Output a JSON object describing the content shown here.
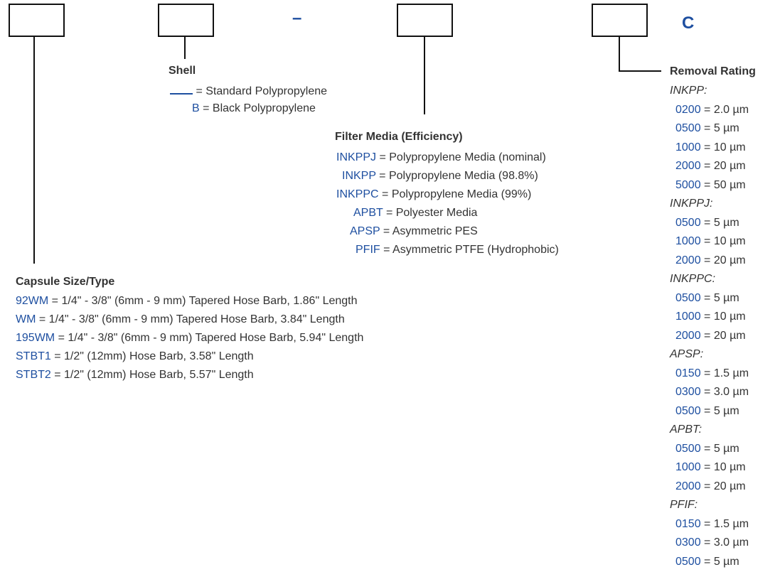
{
  "header": {
    "dash": "–",
    "suffix": "C"
  },
  "shell": {
    "title": "Shell",
    "items": [
      {
        "code": "",
        "text": "= Standard Polypropylene"
      },
      {
        "code": "B",
        "text": "= Black Polypropylene"
      }
    ]
  },
  "media": {
    "title": "Filter Media (Efficiency)",
    "items": [
      {
        "code": "INKPPJ",
        "text": "= Polypropylene Media (nominal)"
      },
      {
        "code": "INKPP",
        "text": "= Polypropylene Media (98.8%)"
      },
      {
        "code": "INKPPC",
        "text": "= Polypropylene Media (99%)"
      },
      {
        "code": "APBT",
        "text": "= Polyester Media"
      },
      {
        "code": "APSP",
        "text": "= Asymmetric PES"
      },
      {
        "code": "PFIF",
        "text": "= Asymmetric PTFE  (Hydrophobic)"
      }
    ]
  },
  "capsule": {
    "title": "Capsule Size/Type",
    "items": [
      {
        "code": "92WM",
        "text": "= 1/4\" - 3/8\" (6mm - 9 mm) Tapered Hose Barb, 1.86\" Length"
      },
      {
        "code": "WM",
        "text": "= 1/4\" - 3/8\" (6mm - 9 mm) Tapered Hose Barb, 3.84\" Length"
      },
      {
        "code": "195WM",
        "text": "= 1/4\" - 3/8\" (6mm - 9 mm) Tapered Hose Barb, 5.94\" Length"
      },
      {
        "code": "STBT1",
        "text": "= 1/2\" (12mm) Hose Barb, 3.58\" Length"
      },
      {
        "code": "STBT2",
        "text": " = 1/2\" (12mm) Hose Barb, 5.57\" Length"
      }
    ]
  },
  "removal": {
    "title": "Removal Rating",
    "groups": [
      {
        "name": "INKPP:",
        "items": [
          {
            "code": "0200",
            "text": "= 2.0 µm"
          },
          {
            "code": "0500",
            "text": "= 5 µm"
          },
          {
            "code": "1000",
            "text": "= 10 µm"
          },
          {
            "code": "2000",
            "text": "= 20 µm"
          },
          {
            "code": "5000",
            "text": "= 50 µm"
          }
        ]
      },
      {
        "name": "INKPPJ:",
        "items": [
          {
            "code": "0500",
            "text": "= 5 µm"
          },
          {
            "code": "1000",
            "text": "= 10 µm"
          },
          {
            "code": "2000",
            "text": "= 20 µm"
          }
        ]
      },
      {
        "name": "INKPPC:",
        "items": [
          {
            "code": "0500",
            "text": "= 5 µm"
          },
          {
            "code": "1000",
            "text": "= 10 µm"
          },
          {
            "code": "2000",
            "text": "= 20 µm"
          }
        ]
      },
      {
        "name": "APSP:",
        "items": [
          {
            "code": "0150",
            "text": "= 1.5 µm"
          },
          {
            "code": "0300",
            "text": "= 3.0 µm"
          },
          {
            "code": "0500",
            "text": "= 5 µm"
          }
        ]
      },
      {
        "name": "APBT:",
        "items": [
          {
            "code": "0500",
            "text": "= 5 µm"
          },
          {
            "code": "1000",
            "text": "= 10 µm"
          },
          {
            "code": "2000",
            "text": "= 20 µm"
          }
        ]
      },
      {
        "name": "PFIF:",
        "items": [
          {
            "code": "0150",
            "text": "= 1.5 µm"
          },
          {
            "code": "0300",
            "text": "= 3.0 µm"
          },
          {
            "code": "0500",
            "text": "= 5 µm"
          }
        ]
      }
    ]
  },
  "colors": {
    "code": "#1e4fa0",
    "text": "#333333",
    "line": "#111111"
  }
}
